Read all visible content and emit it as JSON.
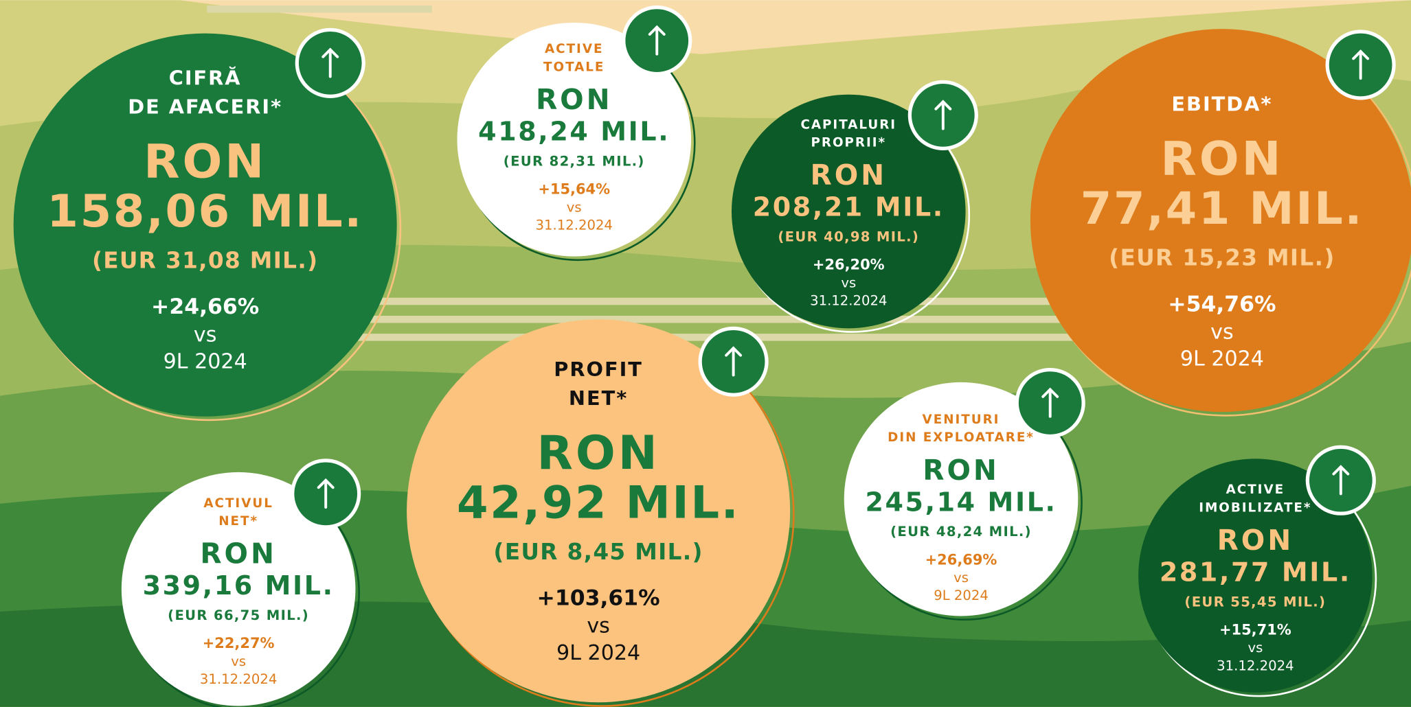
{
  "items": [
    {
      "title": [
        "CIFRĂ",
        "DE AFACERI*"
      ],
      "ron": "RON",
      "amount": "158,06 MIL.",
      "eur": "(EUR 31,08 MIL.)",
      "change": "+24,66%",
      "vs": "vs",
      "period": "9L 2024"
    },
    {
      "title": [
        "ACTIVE",
        "TOTALE"
      ],
      "ron": "RON",
      "amount": "418,24 MIL.",
      "eur": "(EUR 82,31 MIL.)",
      "change": "+15,64%",
      "vs": "vs",
      "period": "31.12.2024"
    },
    {
      "title": [
        "CAPITALURI",
        "PROPRII*"
      ],
      "ron": "RON",
      "amount": "208,21 MIL.",
      "eur": "(EUR 40,98 MIL.)",
      "change": "+26,20%",
      "vs": "vs",
      "period": "31.12.2024"
    },
    {
      "title": [
        "EBITDA*"
      ],
      "ron": "RON",
      "amount": "77,41 MIL.",
      "eur": "(EUR 15,23 MIL.)",
      "change": "+54,76%",
      "vs": "vs",
      "period": "9L 2024"
    },
    {
      "title": [
        "PROFIT",
        "NET*"
      ],
      "ron": "RON",
      "amount": "42,92 MIL.",
      "eur": "(EUR 8,45 MIL.)",
      "change": "+103,61%",
      "vs": "vs",
      "period": "9L 2024"
    },
    {
      "title": [
        "ACTIVUL",
        "NET*"
      ],
      "ron": "RON",
      "amount": "339,16 MIL.",
      "eur": "(EUR 66,75 MIL.)",
      "change": "+22,27%",
      "vs": "vs",
      "period": "31.12.2024"
    },
    {
      "title": [
        "VENITURI",
        "DIN EXPLOATARE*"
      ],
      "ron": "RON",
      "amount": "245,14 MIL.",
      "eur": "(EUR 48,24 MIL.)",
      "change": "+26,69%",
      "vs": "vs",
      "period": "9L 2024"
    },
    {
      "title": [
        "ACTIVE",
        "IMOBILIZATE*"
      ],
      "ron": "RON",
      "amount": "281,77 MIL.",
      "eur": "(EUR 55,45 MIL.)",
      "change": "+15,71%",
      "vs": "vs",
      "period": "31.12.2024"
    }
  ]
}
